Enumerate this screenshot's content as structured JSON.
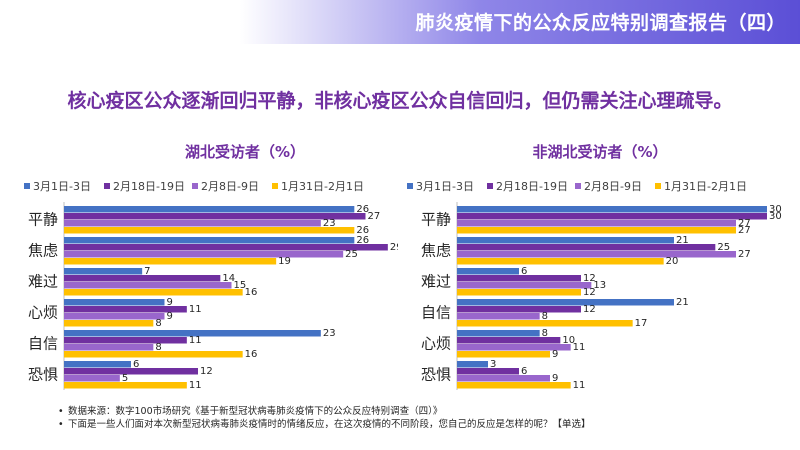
{
  "header": {
    "title": "肺炎疫情下的公众反应特别调查报告（四）"
  },
  "headline": "核心疫区公众逐渐回归平静，非核心疫区公众自信回归，但仍需关注心理疏导。",
  "colors": {
    "banner": "#5b4fd6",
    "headline": "#7030a0"
  },
  "chart_data": [
    {
      "type": "bar",
      "orientation": "horizontal",
      "title": "湖北受访者（%）",
      "categories": [
        "平静",
        "焦虑",
        "难过",
        "心烦",
        "自信",
        "恐惧"
      ],
      "series": [
        {
          "name": "3月1日-3日",
          "color": "#4472c4",
          "values": [
            26,
            26,
            7,
            9,
            23,
            6
          ]
        },
        {
          "name": "2月18日-19日",
          "color": "#7030a0",
          "values": [
            27,
            29,
            14,
            11,
            11,
            12
          ]
        },
        {
          "name": "2月8日-9日",
          "color": "#9966cc",
          "values": [
            23,
            25,
            15,
            9,
            8,
            5
          ]
        },
        {
          "name": "1月31日-2月1日",
          "color": "#ffc000",
          "values": [
            26,
            19,
            16,
            8,
            16,
            11
          ]
        }
      ],
      "legend": "top",
      "xlim": [
        0,
        30
      ]
    },
    {
      "type": "bar",
      "orientation": "horizontal",
      "title": "非湖北受访者（%）",
      "categories": [
        "平静",
        "焦虑",
        "难过",
        "自信",
        "心烦",
        "恐惧"
      ],
      "series": [
        {
          "name": "3月1日-3日",
          "color": "#4472c4",
          "values": [
            30,
            21,
            6,
            21,
            8,
            3
          ]
        },
        {
          "name": "2月18日-19日",
          "color": "#7030a0",
          "values": [
            30,
            25,
            12,
            12,
            10,
            6
          ]
        },
        {
          "name": "2月8日-9日",
          "color": "#9966cc",
          "values": [
            27,
            27,
            13,
            8,
            11,
            9
          ]
        },
        {
          "name": "1月31日-2月1日",
          "color": "#ffc000",
          "values": [
            27,
            20,
            12,
            17,
            9,
            11
          ]
        }
      ],
      "legend": "top",
      "xlim": [
        0,
        30
      ]
    }
  ],
  "notes": [
    "数据来源：数字100市场研究《基于新型冠状病毒肺炎疫情下的公众反应特别调查（四）》",
    "下面是一些人们面对本次新型冠状病毒肺炎疫情时的情绪反应，在这次疫情的不同阶段，您自己的反应是怎样的呢？【单选】"
  ]
}
